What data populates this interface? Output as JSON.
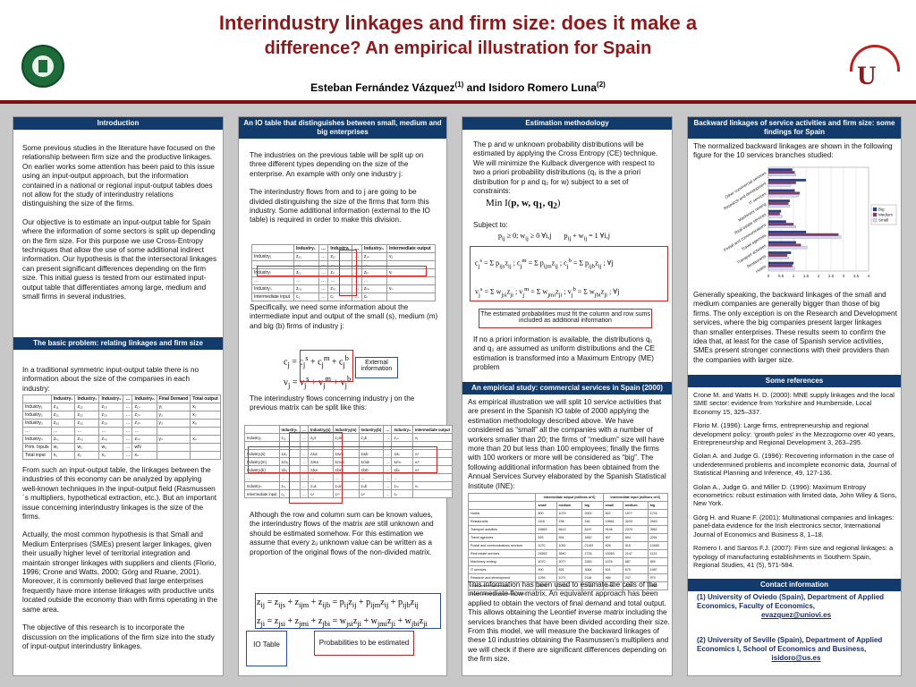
{
  "header": {
    "title_line1": "Interindustry linkages and firm size: does it make a",
    "title_line2": "difference? An empirical illustration for Spain",
    "author1": "Esteban Fernández Vázquez",
    "author1_sup": "(1)",
    "and": " and ",
    "author2": "Isidoro Romero Luna",
    "author2_sup": "(2)"
  },
  "col1": {
    "intro_head": "Introduction",
    "intro_p1": "Some previous studies in the literature have focused on the relationship between firm size and the productive linkages. On earlier works some attention has been paid to this issue using an input-output approach, but the information contained in a national or regional input-output tables does not allow for the study of interindustry relations distinguishing the size of the firms.",
    "intro_p2": "Our objective is to estimate an input-output table for Spain where the information of some sectors is split up depending on the firm size. For this purpose we use Cross-Entropy techniques that allow the use of some additional indirect information. Our hypothesis is that the intersectoral linkages can present significant differences depending on the firm size. This initial guess is tested from our estimated input-output table that differentiates among large, medium and small firms in several industries.",
    "basic_head": "The basic problem: relating linkages and firm size",
    "basic_p1": "In a traditional symmetric input-output table there is no information about the size of the companies in each industry:",
    "table_headers": [
      "",
      "Industry₁",
      "Industry₂",
      "Industry₃",
      "…",
      "Industryₙ",
      "Final Demand",
      "Total output"
    ],
    "table_rows": [
      [
        "Industry₁",
        "z₁₁",
        "z₁₂",
        "z₁₃",
        "…",
        "z₁ₙ",
        "y₁",
        "x₁"
      ],
      [
        "Industry₂",
        "z₂₁",
        "z₂₂",
        "z₂₃",
        "…",
        "z₂ₙ",
        "y₂",
        "x₂"
      ],
      [
        "Industry₃",
        "z₃₁",
        "z₃₂",
        "z₃₃",
        "…",
        "z₃ₙ",
        "y₃",
        "x₃"
      ],
      [
        "…",
        "…",
        "…",
        "…",
        "…",
        "…",
        "",
        ""
      ],
      [
        "Industryₙ",
        "zₙ₁",
        "zₙ₂",
        "zₙ₃",
        "…",
        "zₙₙ",
        "yₙ",
        "xₙ"
      ],
      [
        "Prim. Inputs",
        "w₁",
        "w₂",
        "w₃",
        "…",
        "wN",
        "",
        ""
      ],
      [
        "Total input",
        "x₁",
        "x₂",
        "x₃",
        "…",
        "xₙ",
        "",
        ""
      ]
    ],
    "basic_p2": "From such an input-output table, the linkages between the industries of this economy can be analyzed by applying well-known techniques in the input-output field (Rasmussen´s multipliers, hypothetical extraction, etc.). But an important issue concerning interindustry linkages is the size of the firms.",
    "basic_p3": "Actually, the most common hypothesis is that Small and Medium Enterprises (SMEs) present larger linkages, given their usually higher level of territorial integration and maintain stronger linkages with suppliers and clients (Florio, 1996; Crone and Watts, 2000; Görg and Ruane, 2001). Moreover, it is commonly believed that large enterprises frequently have more intense linkages with productive units located outside the economy than with firms operating in the same area.",
    "basic_p4": "The objective of this research is to incorporate the discussion on the implications of the firm size into the study of input-output interindustry linkages."
  },
  "col2": {
    "head": "An IO table that distinguishes between small, medium and big enterprises",
    "p1": "The industries on the previous table will be split up on three different types depending on the size of the enterprise. An example with only one industry j:",
    "p2": "The interindustry flows from and to j are going to be divided distinguishing the size of the firms that form this industry. Some additional information (external to the IO table) is required in order to make this division.",
    "p3": "Specifically, we need some information about the intermediate input and output of the small (s), medium (m) and big (b) firms of industry j:",
    "ext_label": "External information",
    "p4": "The interindustry flows concerning industry j on the previous matrix can be split like this:",
    "p5": "Although the row and column sum can be known values, the interindustry flows of the matrix are still unknown and should be estimated somehow. For this estimation we assume that every zᵢⱼ unknown value can be written as a proportion of the original flows of the non-divided matrix.",
    "io_label": "IO Table",
    "prob_label": "Probabilities to be estimated",
    "t1_headers": [
      "",
      "Industry₁",
      "…",
      "Industryⱼ",
      "…",
      "Industryₙ",
      "Intermediate output"
    ],
    "t1_rows": [
      [
        "Industry₁",
        "z₁₁",
        "…",
        "z₁ⱼ",
        "…",
        "z₁ₙ",
        "v₁"
      ],
      [
        "…",
        "…",
        "…",
        "…",
        "…",
        "…",
        ""
      ],
      [
        "Industryⱼ",
        "zⱼ₁",
        "…",
        "zⱼⱼ",
        "…",
        "zⱼₙ",
        "vⱼ"
      ],
      [
        "…",
        "…",
        "…",
        "…",
        "…",
        "…",
        ""
      ],
      [
        "Industryₙ",
        "zₙ₁",
        "…",
        "zₙⱼ",
        "…",
        "zₙₙ",
        "vₙ"
      ],
      [
        "Intermediate input",
        "c₁",
        "…",
        "cⱼ",
        "…",
        "cₙ",
        ""
      ]
    ],
    "t2_headers": [
      "",
      "Industry₁",
      "…",
      "Industryⱼ(s)",
      "Industryⱼ(m)",
      "Industryⱼ(b)",
      "…",
      "Industryₙ",
      "Intermediate output"
    ],
    "t2_rows": [
      [
        "Industry₁",
        "z₁₁",
        "…",
        "z₁ⱼs",
        "z₁ⱼm",
        "z₁ⱼb",
        "…",
        "z₁ₙ",
        "v₁"
      ],
      [
        "…",
        "…",
        "…",
        "…",
        "…",
        "…",
        "…",
        "…",
        ""
      ],
      [
        "Industryⱼ(s)",
        "zⱼs₁",
        "…",
        "zⱼsⱼs",
        "zⱼsⱼm",
        "zⱼsⱼb",
        "…",
        "zⱼsₙ",
        "vⱼˢ"
      ],
      [
        "Industryⱼ(m)",
        "zⱼm₁",
        "…",
        "zⱼmⱼs",
        "zⱼmⱼm",
        "zⱼmⱼb",
        "…",
        "zⱼmₙ",
        "vⱼᵐ"
      ],
      [
        "Industryⱼ(b)",
        "zⱼb₁",
        "…",
        "zⱼbⱼs",
        "zⱼbⱼm",
        "zⱼbⱼb",
        "…",
        "zⱼbₙ",
        "vⱼᵇ"
      ],
      [
        "…",
        "…",
        "…",
        "…",
        "…",
        "…",
        "…",
        "…",
        ""
      ],
      [
        "Industryₙ",
        "zₙ₁",
        "…",
        "zₙⱼs",
        "zₙⱼm",
        "zₙⱼb",
        "…",
        "zₙₙ",
        "vₙ"
      ],
      [
        "Intermediate input",
        "c₁",
        "…",
        "cⱼˢ",
        "cⱼᵐ",
        "cⱼᵇ",
        "…",
        "cₙ",
        ""
      ]
    ]
  },
  "col3": {
    "head1": "Estimation methodology",
    "p1": "The p and w unknown probability distributions will be estimated by applying the Cross Entropy (CE) technique. We will minimize the Kulback divergence with respect to two a priori probability distributions (q₁ is the a priori distribution for p and q₂ for w) subject to a set of constraints:",
    "subject_to": "Subject to:",
    "note": "The estimated probabilities must fit the column and row sums included as additional information",
    "p2": "If no a priori information is available, the distributions q₁ and q₂ are assumed as uniform distributions and the CE estimation is transformed into a Maximum Entropy (ME) problem",
    "head2": "An empirical study: commercial services in Spain (2000)",
    "p3": "As empirical illustration we will split 10 service activities that are present in the Spanish IO table of 2000 applying the estimation methodology described above. We have considered as “small” all the companies with a number of workers smaller than 20; the firms of “medium” size will have more than 20 but less than 100 employees; finally the firms with 100 workers or more will be considered as “big”. The following additional information has been obtained from the Annual Services Survey elaborated by the Spanish Statistical Institute (INE):",
    "p4": "This information has been used to estimate the cells of the intermediate flow matrix. An equivalent approach has been applied to obtain the vectors of final demand and total output. This allows obtaining the Leontief inverse matrix including the services branches that have been divided according their size. From this model, we will measure the backward linkages of these 10 industries obtaining the Rasmussen’s multipliers and we will check if there are significant differences depending on the firm size.",
    "data_table": {
      "group1": "Intermediate output (millions of €)",
      "group2": "Intermediate input (millions of €)",
      "subheaders": [
        "small",
        "medium",
        "big",
        "small",
        "medium",
        "big"
      ],
      "rows": [
        [
          "Hotels",
          "800",
          "1079",
          "2002",
          "822",
          "1577",
          "1724"
        ],
        [
          "Restaurants",
          "1116",
          "238",
          "246",
          "19661",
          "3033",
          "2463"
        ],
        [
          "Transport activities",
          "15663",
          "6613",
          "8197",
          "9146",
          "2379",
          "3962"
        ],
        [
          "Travel agencies",
          "693",
          "594",
          "1652",
          "907",
          "694",
          "2261"
        ],
        [
          "Postal and communications services",
          "1070",
          "1052",
          "21193",
          "626",
          "915",
          "10465"
        ],
        [
          "Real estate services",
          "24563",
          "3640",
          "1728",
          "15263",
          "2147",
          "1131"
        ],
        [
          "Machinery renting",
          "4070",
          "2077",
          "2263",
          "1476",
          "887",
          "659"
        ],
        [
          "IT services",
          "900",
          "826",
          "3064",
          "601",
          "675",
          "1987"
        ],
        [
          "Research and development",
          "1259",
          "1071",
          "2116",
          "466",
          "247",
          "979"
        ],
        [
          "Other commercial services",
          "26996",
          "17320",
          "27331",
          "12996",
          "6267",
          "9936"
        ]
      ],
      "source": "Source: Annual Services Survey (2000)"
    }
  },
  "col4": {
    "head1": "Backward linkages of service activities and firm size: some findings for Spain",
    "p1": "The normalized backward linkages are shown in the following figure for the 10 services branches studied:",
    "p2": "Generally speaking, the backward linkages of the small and medium companies are generally bigger than those of big firms. The only exception is on the Research and Development services, where the big companies present larger linkages than smaller enterprises. These results seem to confirm the idea that, at least for the case of Spanish service activities, SMEs present stronger connections with their providers than the companies with larger size.",
    "head2": "Some references",
    "refs": [
      "Crone M. and Watts H. D. (2000): MNE supply linkages and the local SME sector: evidence from Yorkshire and Humberside, Local Economy 15, 325–337.",
      "Florio M. (1996): Large firms, entrepreneurship and regional development policy: ‘growth poles’ in the Mezzogiorno over 40 years, Entrepreneurship and Regional Development 3, 263–295.",
      "Golan A. and Judge G. (1996): Recovering information in the case of underdetermined problems and incomplete economic data, Journal of Statistical Planning and Inference, 49, 127-136.",
      "Golan A., Judge G. and Miller D. (1996): Maximum Entropy econometrics: robust estimation with limited data, John Wiley & Sons, New York.",
      "Görg H. and Ruane F. (2001): Multinational companies and linkages: panel-data evidence for the Irish electronics sector, International Journal of Economics and Business 8, 1–18.",
      "Romero I. and Santos F.J. (2007): Firm size and regional linkages: a typology of manufacturing establishments in Southern Spain, Regional Studies, 41 (5), 571-584."
    ],
    "head3": "Contact information",
    "contact1": "(1)  University of Oviedo (Spain), Department of Applied Economics, Faculty of Economics,",
    "email1": "evazquez@uniovi.es",
    "contact2": "(2)  University of Seville (Spain),  Department of Applied Economics I, School of Economics and Business,",
    "email2": "isidoro@us.es"
  },
  "chart_data": {
    "type": "bar",
    "orientation": "horizontal",
    "categories": [
      "Other commercial services",
      "Research and development",
      "IT services",
      "Machinery renting",
      "Real estate services",
      "Postal and communications",
      "Travel agencies",
      "Transport activities",
      "Restaurants",
      "Hotels"
    ],
    "series": [
      {
        "name": "Big",
        "color": "#2b3f8f",
        "values": [
          0.95,
          1.5,
          1.05,
          0.85,
          0.5,
          0.7,
          1.5,
          1.1,
          0.9,
          1.0
        ]
      },
      {
        "name": "Medium",
        "color": "#8a3a6a",
        "values": [
          1.05,
          1.1,
          1.25,
          0.8,
          0.45,
          1.0,
          2.8,
          1.3,
          0.75,
          0.95
        ]
      },
      {
        "name": "Small",
        "color": "#d9d9ff",
        "values": [
          1.1,
          0.9,
          1.2,
          0.85,
          0.55,
          1.1,
          2.9,
          1.55,
          0.8,
          1.05
        ]
      }
    ],
    "xlim": [
      0,
      4
    ],
    "xticks": [
      "0",
      "0.5",
      "1",
      "1.5",
      "2",
      "2.5",
      "3",
      "3.5",
      "4"
    ],
    "legend": "right"
  }
}
